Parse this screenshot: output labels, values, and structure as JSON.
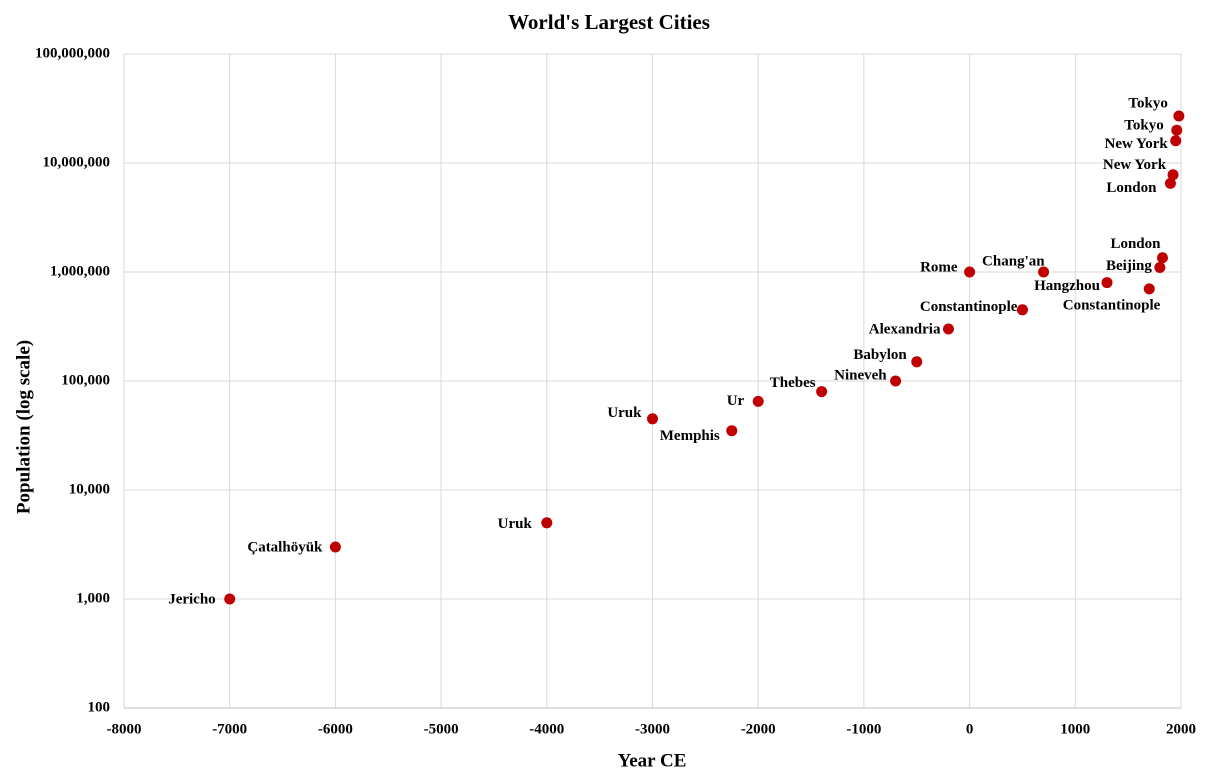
{
  "chart_data": {
    "type": "scatter",
    "title": "World's  Largest Cities",
    "xlabel": "Year CE",
    "ylabel": "Population (log scale)",
    "x": [
      -7000,
      -6000,
      -4000,
      -3000,
      -2250,
      -2000,
      -1400,
      -700,
      -500,
      -200,
      0,
      700,
      500,
      1300,
      1700,
      1800,
      1825,
      1900,
      1925,
      1950,
      1960,
      1980
    ],
    "values": [
      1000,
      3000,
      5000,
      45000,
      35000,
      65000,
      80000,
      100000,
      150000,
      300000,
      1000000,
      1000000,
      450000,
      800000,
      700000,
      1100000,
      1350000,
      6500000,
      7800000,
      16000000,
      20000000,
      27000000
    ],
    "labels": [
      "Jericho",
      "Çatalhöyük",
      "Uruk",
      "Uruk",
      "Memphis",
      "Ur",
      "Thebes",
      "Nineveh",
      "Babylon",
      "Alexandria",
      "Rome",
      "Chang'an",
      "Constantinople",
      "Hangzhou",
      "Constantinople",
      "Beijing",
      "London",
      "London",
      "New York",
      "New York",
      "Tokyo",
      "Tokyo"
    ],
    "color": "#c00000",
    "log_y": true,
    "grid": true,
    "xlim": [
      -8000,
      2000
    ],
    "xticks": [
      -8000,
      -7000,
      -6000,
      -5000,
      -4000,
      -3000,
      -2000,
      -1000,
      0,
      1000,
      2000
    ],
    "ylim": [
      100,
      100000000
    ],
    "yticks": [
      100,
      {
        "value": 1000,
        "label": "1,000"
      },
      {
        "value": 10000,
        "label": "10,000"
      },
      {
        "value": 100000,
        "label": "100,000"
      },
      {
        "value": 1000000,
        "label": "1,000,000"
      },
      {
        "value": 10000000,
        "label": "10,000,000"
      },
      {
        "value": 100000000,
        "label": "100,000,000"
      }
    ]
  }
}
